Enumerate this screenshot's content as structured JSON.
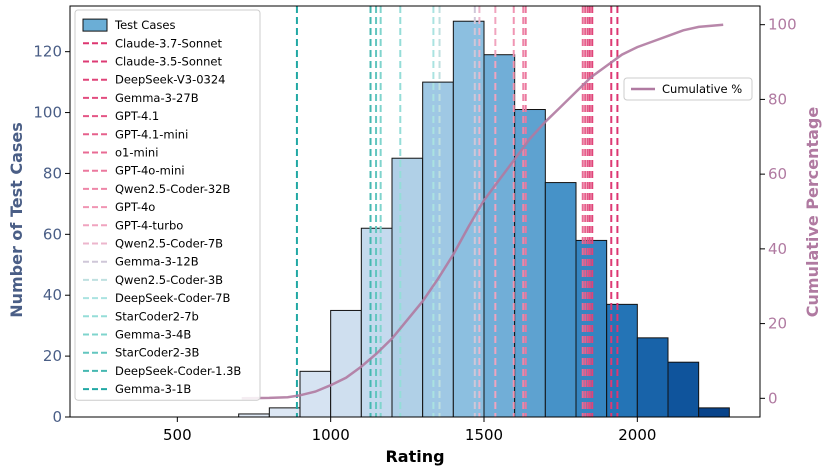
{
  "chart_data": {
    "type": "bar",
    "title": "",
    "xlabel": "Rating",
    "ylabel": "Number of Test Cases",
    "y2label": "Cumulative Percentage",
    "xlim": [
      150,
      2400
    ],
    "ylim": [
      0,
      135
    ],
    "y2lim": [
      -5,
      105
    ],
    "xticks": [
      500,
      1000,
      1500,
      2000
    ],
    "yticks": [
      0,
      20,
      40,
      60,
      80,
      100,
      120
    ],
    "y2ticks": [
      0,
      20,
      40,
      60,
      80,
      100
    ],
    "bar_width": 100,
    "bars": [
      {
        "x0": 700,
        "count": 1,
        "color": "#dfe9f5"
      },
      {
        "x0": 800,
        "count": 3,
        "color": "#dce7f4"
      },
      {
        "x0": 900,
        "count": 15,
        "color": "#d6e3f2"
      },
      {
        "x0": 1000,
        "count": 35,
        "color": "#cfdfef"
      },
      {
        "x0": 1100,
        "count": 62,
        "color": "#c4daee"
      },
      {
        "x0": 1200,
        "count": 85,
        "color": "#b0d0e7"
      },
      {
        "x0": 1300,
        "count": 110,
        "color": "#9fc8e4"
      },
      {
        "x0": 1400,
        "count": 130,
        "color": "#8cbfe0"
      },
      {
        "x0": 1500,
        "count": 119,
        "color": "#71aed7"
      },
      {
        "x0": 1600,
        "count": 101,
        "color": "#5ea2d0"
      },
      {
        "x0": 1700,
        "count": 77,
        "color": "#4692c8"
      },
      {
        "x0": 1800,
        "count": 58,
        "color": "#3585c1"
      },
      {
        "x0": 1900,
        "count": 37,
        "color": "#2474b6"
      },
      {
        "x0": 2000,
        "count": 26,
        "color": "#1863a9"
      },
      {
        "x0": 2100,
        "count": 18,
        "color": "#0f549c"
      },
      {
        "x0": 2200,
        "count": 3,
        "color": "#08438a"
      }
    ],
    "bars_legend": "Test Cases",
    "bars_legend_color": "#6baed6",
    "model_lines": [
      {
        "name": "Claude-3.7-Sonnet",
        "rating": 1935,
        "color": "#dd3671"
      },
      {
        "name": "Claude-3.5-Sonnet",
        "rating": 1915,
        "color": "#dd3b74"
      },
      {
        "name": "DeepSeek-V3-0324",
        "rating": 1853,
        "color": "#e04479"
      },
      {
        "name": "Gemma-3-27B",
        "rating": 1845,
        "color": "#e24c7f"
      },
      {
        "name": "GPT-4.1",
        "rating": 1838,
        "color": "#e45685"
      },
      {
        "name": "GPT-4.1-mini",
        "rating": 1830,
        "color": "#e6608c"
      },
      {
        "name": "o1-mini",
        "rating": 1822,
        "color": "#e86b94"
      },
      {
        "name": "GPT-4o-mini",
        "rating": 1636,
        "color": "#eb789e"
      },
      {
        "name": "Qwen2.5-Coder-32B",
        "rating": 1628,
        "color": "#ee86a8"
      },
      {
        "name": "GPT-4o",
        "rating": 1597,
        "color": "#f095b3"
      },
      {
        "name": "GPT-4-turbo",
        "rating": 1537,
        "color": "#f0a4bf"
      },
      {
        "name": "Qwen2.5-Coder-7B",
        "rating": 1485,
        "color": "#ecb6cc"
      },
      {
        "name": "Gemma-3-12B",
        "rating": 1470,
        "color": "#cfc7d8"
      },
      {
        "name": "Qwen2.5-Coder-3B",
        "rating": 1355,
        "color": "#bfe0e0"
      },
      {
        "name": "DeepSeek-Coder-7B",
        "rating": 1335,
        "color": "#aae3e1"
      },
      {
        "name": "StarCoder2-7b",
        "rating": 1227,
        "color": "#95ddd8"
      },
      {
        "name": "Gemma-3-4B",
        "rating": 1163,
        "color": "#7fd4cd"
      },
      {
        "name": "StarCoder2-3B",
        "rating": 1148,
        "color": "#62c6bf"
      },
      {
        "name": "DeepSeek-Coder-1.3B",
        "rating": 1130,
        "color": "#45b8b1"
      },
      {
        "name": "Gemma-3-1B",
        "rating": 890,
        "color": "#21a8a4"
      }
    ],
    "cumulative": {
      "name": "Cumulative %",
      "color": "#b07aa1",
      "points": [
        [
          710,
          0
        ],
        [
          800,
          0.1
        ],
        [
          860,
          0.3
        ],
        [
          900,
          0.8
        ],
        [
          950,
          1.8
        ],
        [
          1000,
          3.5
        ],
        [
          1050,
          5.5
        ],
        [
          1100,
          8.5
        ],
        [
          1150,
          12
        ],
        [
          1200,
          16
        ],
        [
          1250,
          21
        ],
        [
          1300,
          26
        ],
        [
          1350,
          32
        ],
        [
          1400,
          38.5
        ],
        [
          1450,
          46
        ],
        [
          1500,
          53
        ],
        [
          1550,
          58.5
        ],
        [
          1600,
          64
        ],
        [
          1650,
          69.5
        ],
        [
          1700,
          74
        ],
        [
          1750,
          78
        ],
        [
          1800,
          82
        ],
        [
          1850,
          86
        ],
        [
          1900,
          89
        ],
        [
          1950,
          92
        ],
        [
          2000,
          94
        ],
        [
          2050,
          95.5
        ],
        [
          2100,
          97
        ],
        [
          2150,
          98.5
        ],
        [
          2200,
          99.4
        ],
        [
          2280,
          100
        ]
      ]
    }
  }
}
